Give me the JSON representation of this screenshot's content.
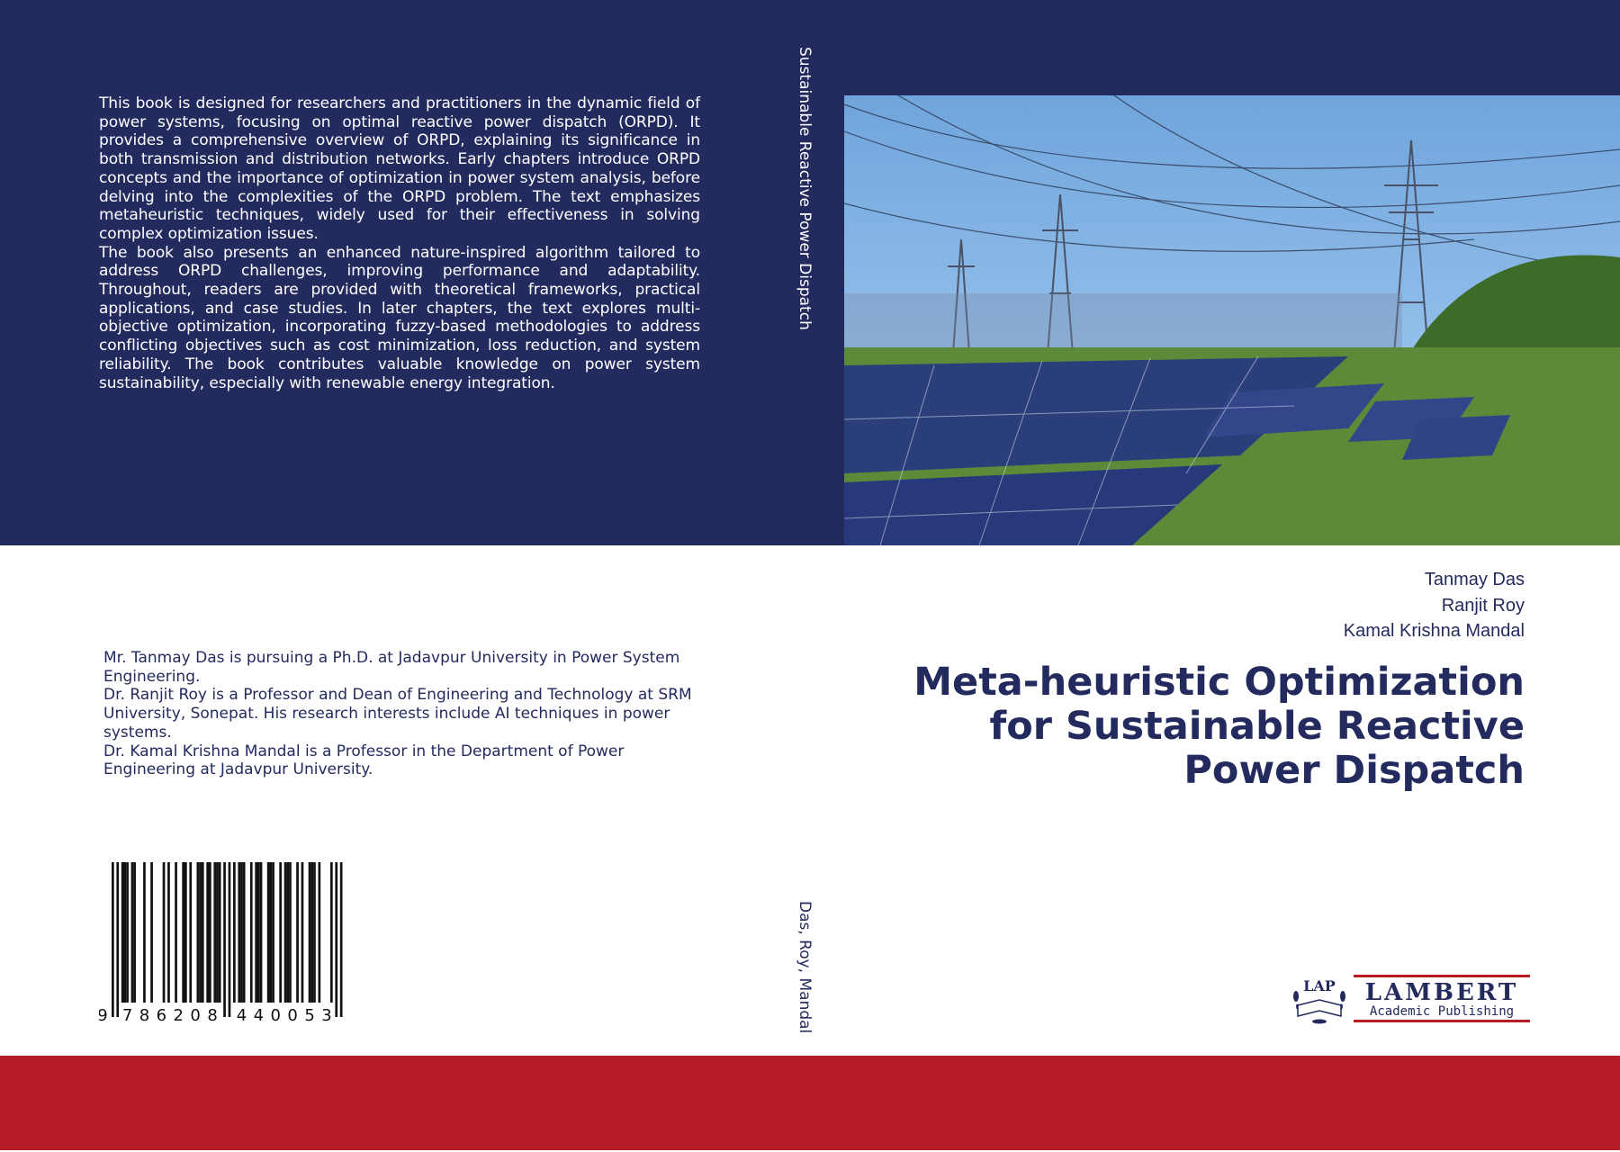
{
  "back_cover": {
    "blurb": [
      "This book is designed for researchers and practitioners in the dynamic field of power systems, focusing on optimal reactive power dispatch (ORPD). It provides a comprehensive overview of ORPD, explaining its significance in both transmission and distribution networks. Early chapters introduce ORPD concepts and the importance of optimization in power system analysis, before delving into the complexities of the ORPD problem. The text emphasizes metaheuristic techniques, widely used for their effectiveness in solving complex optimization issues.",
      "The book also presents an enhanced nature-inspired algorithm tailored to address ORPD challenges, improving performance and adaptability. Throughout, readers are provided with theoretical frameworks, practical applications, and case studies. In later chapters, the text explores multi-objective optimization, incorporating fuzzy-based methodologies to address conflicting objectives such as cost minimization, loss reduction, and system reliability. The book contributes valuable knowledge on power system sustainability, especially with renewable energy integration."
    ],
    "bios": [
      "Mr. Tanmay Das is pursuing a Ph.D. at Jadavpur University in Power System Engineering.",
      "Dr. Ranjit Roy is a Professor and Dean of Engineering and Technology at SRM University, Sonepat. His research interests include AI techniques in power systems.",
      "Dr. Kamal Krishna Mandal is a Professor in the Department of Power Engineering at Jadavpur University."
    ],
    "isbn": "9786208440053"
  },
  "spine": {
    "title": "Sustainable Reactive Power Dispatch",
    "authors": "Das, Roy, Mandal"
  },
  "front_cover": {
    "authors": [
      "Tanmay Das",
      "Ranjit Roy",
      "Kamal Krishna Mandal"
    ],
    "title_lines": [
      "Meta-heuristic Optimization",
      "for Sustainable Reactive",
      "Power Dispatch"
    ],
    "photo_subject": "solar panels and power transmission towers"
  },
  "publisher": {
    "badge": "LAP",
    "name": "LAMBERT",
    "subtitle": "Academic Publishing"
  },
  "colors": {
    "navy": "#232a5e",
    "red": "#b51c25"
  }
}
